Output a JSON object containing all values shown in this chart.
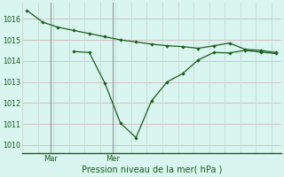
{
  "line1_x": [
    0,
    1,
    2,
    3,
    4,
    5,
    6,
    7,
    8,
    9,
    10,
    11,
    12,
    13,
    14,
    15,
    16
  ],
  "line1_y": [
    1016.4,
    1015.85,
    1015.6,
    1015.45,
    1015.3,
    1015.15,
    1015.0,
    1014.9,
    1014.8,
    1014.72,
    1014.68,
    1014.6,
    1014.72,
    1014.85,
    1014.55,
    1014.5,
    1014.4
  ],
  "line2_x": [
    3,
    4,
    5,
    6,
    7,
    8,
    9,
    10,
    11,
    12,
    13,
    14,
    15,
    16
  ],
  "line2_y": [
    1014.45,
    1014.4,
    1012.95,
    1011.05,
    1010.35,
    1012.1,
    1013.0,
    1013.4,
    1014.05,
    1014.4,
    1014.38,
    1014.5,
    1014.42,
    1014.35
  ],
  "line_color": "#1a5c1a",
  "bg_color": "#d8f5f0",
  "grid_color_h": "#d4b8b8",
  "grid_color_v": "#c8d8d0",
  "xlabel": "Pression niveau de la mer( hPa )",
  "xlabel_color": "#1a5c1a",
  "yticks": [
    1010,
    1011,
    1012,
    1013,
    1014,
    1015,
    1016
  ],
  "ylim": [
    1009.6,
    1016.75
  ],
  "xlim": [
    -0.3,
    16.3
  ],
  "mar_x": 1.5,
  "mer_x": 5.5,
  "tick_label_color": "#1a5c1a",
  "vline_color": "#888888",
  "marker": "D",
  "markersize": 2.2,
  "linewidth": 0.9
}
